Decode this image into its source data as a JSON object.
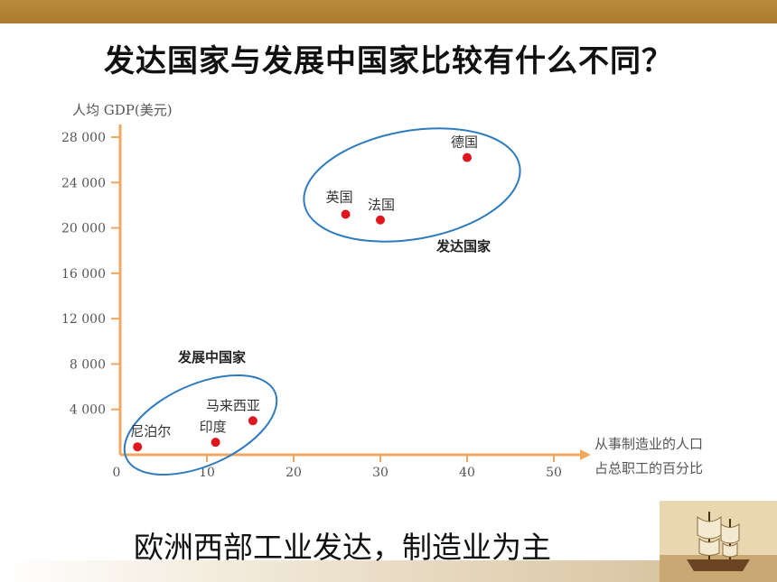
{
  "title": "发达国家与发展中国家比较有什么不同？",
  "caption": "欧洲西部工业发达，制造业为主",
  "colors": {
    "axis": "#f0a860",
    "point": "#e0161e",
    "ellipse": "#2e7bbf",
    "band": "#b0843a"
  },
  "chart_data": {
    "type": "scatter",
    "ylabel": "人均 GDP(美元)",
    "xlabel_line1": "从事制造业的人口",
    "xlabel_line2": "占总职工的百分比",
    "xlim": [
      0,
      52
    ],
    "ylim": [
      0,
      29000
    ],
    "x_ticks": [
      "0",
      "10",
      "20",
      "30",
      "40",
      "50"
    ],
    "y_ticks": [
      "4 000",
      "8 000",
      "12 000",
      "16 000",
      "20 000",
      "24 000",
      "28 000"
    ],
    "points": [
      {
        "name": "德国",
        "x": 40,
        "y": 26200
      },
      {
        "name": "英国",
        "x": 26,
        "y": 21200
      },
      {
        "name": "法国",
        "x": 30,
        "y": 20700
      },
      {
        "name": "马来西亚",
        "x": 15.3,
        "y": 3000
      },
      {
        "name": "印度",
        "x": 11,
        "y": 1100
      },
      {
        "name": "尼泊尔",
        "x": 2,
        "y": 700
      }
    ],
    "groups": [
      {
        "name": "发达国家"
      },
      {
        "name": "发展中国家"
      }
    ]
  }
}
